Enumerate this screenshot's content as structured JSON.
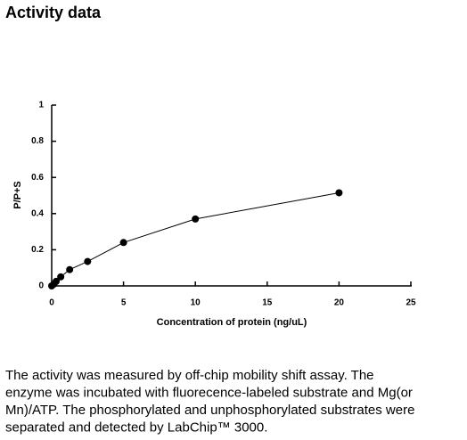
{
  "header": {
    "title": "Activity data"
  },
  "chart_data": {
    "type": "line",
    "x_label": "Concentration of protein (ng/uL)",
    "y_label": "P/P+S",
    "x": [
      0,
      0.16,
      0.31,
      0.63,
      1.25,
      2.5,
      5,
      10,
      20
    ],
    "values": [
      0,
      0.01,
      0.025,
      0.05,
      0.09,
      0.135,
      0.24,
      0.37,
      0.515
    ],
    "color": "#000000",
    "xlim": [
      0,
      25
    ],
    "xticks": [
      0,
      5,
      10,
      15,
      20,
      25
    ],
    "ylim": [
      0,
      1
    ],
    "yticks": [
      0,
      0.2,
      0.4,
      0.6,
      0.8,
      1
    ]
  },
  "caption": {
    "lines": [
      "The activity was measured by off-chip mobility shift assay. The",
      "enzyme was incubated with fluorecence-labeled  substrate and Mg(or",
      "Mn)/ATP. The phosphorylated and unphosphorylated substrates were",
      "separated and detected by LabChip™ 3000."
    ]
  }
}
